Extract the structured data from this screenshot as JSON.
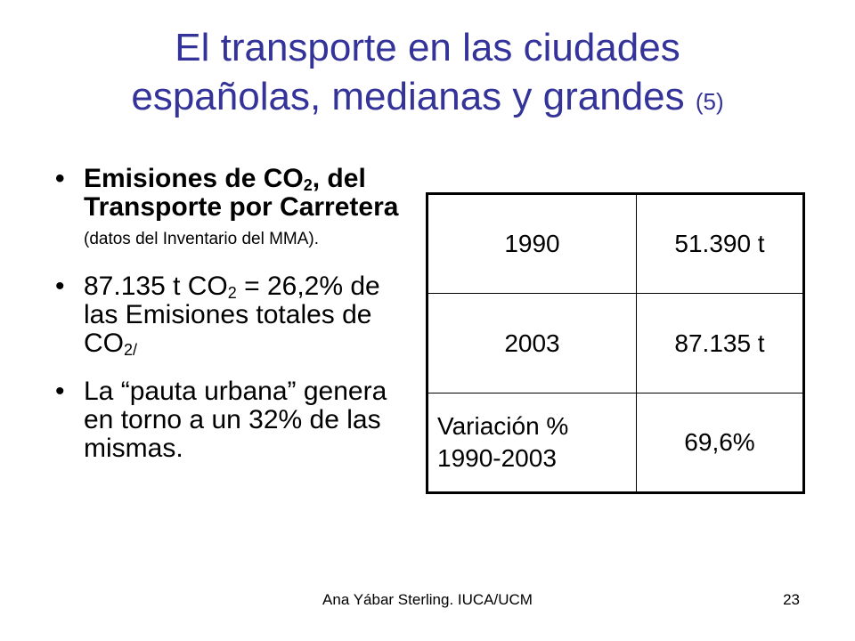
{
  "slide": {
    "title_line1": "El transporte en las ciudades",
    "title_line2": "españolas, medianas y grandes",
    "title_num": "(5)"
  },
  "bullets": [
    {
      "text_a": "Emisiones de CO",
      "sub_a": "2",
      "text_b": ", del Transporte por Carretera",
      "note": "(datos del Inventario del MMA)."
    },
    {
      "text_a": "87.135 t CO",
      "sub_a": "2",
      "text_b": " = 26,2% de las Emisiones totales de CO",
      "sub_b": "2/"
    },
    {
      "text": "La “pauta urbana” genera en torno a un 32% de las mismas."
    }
  ],
  "table": {
    "rows": [
      {
        "label": "1990",
        "value": "51.390 t"
      },
      {
        "label": "2003",
        "value": "87.135 t"
      },
      {
        "label_line1": "Variación %",
        "label_line2": "1990-2003",
        "value": "69,6%"
      }
    ]
  },
  "footer": {
    "credit": "Ana Yábar Sterling. IUCA/UCM",
    "page": "23"
  }
}
